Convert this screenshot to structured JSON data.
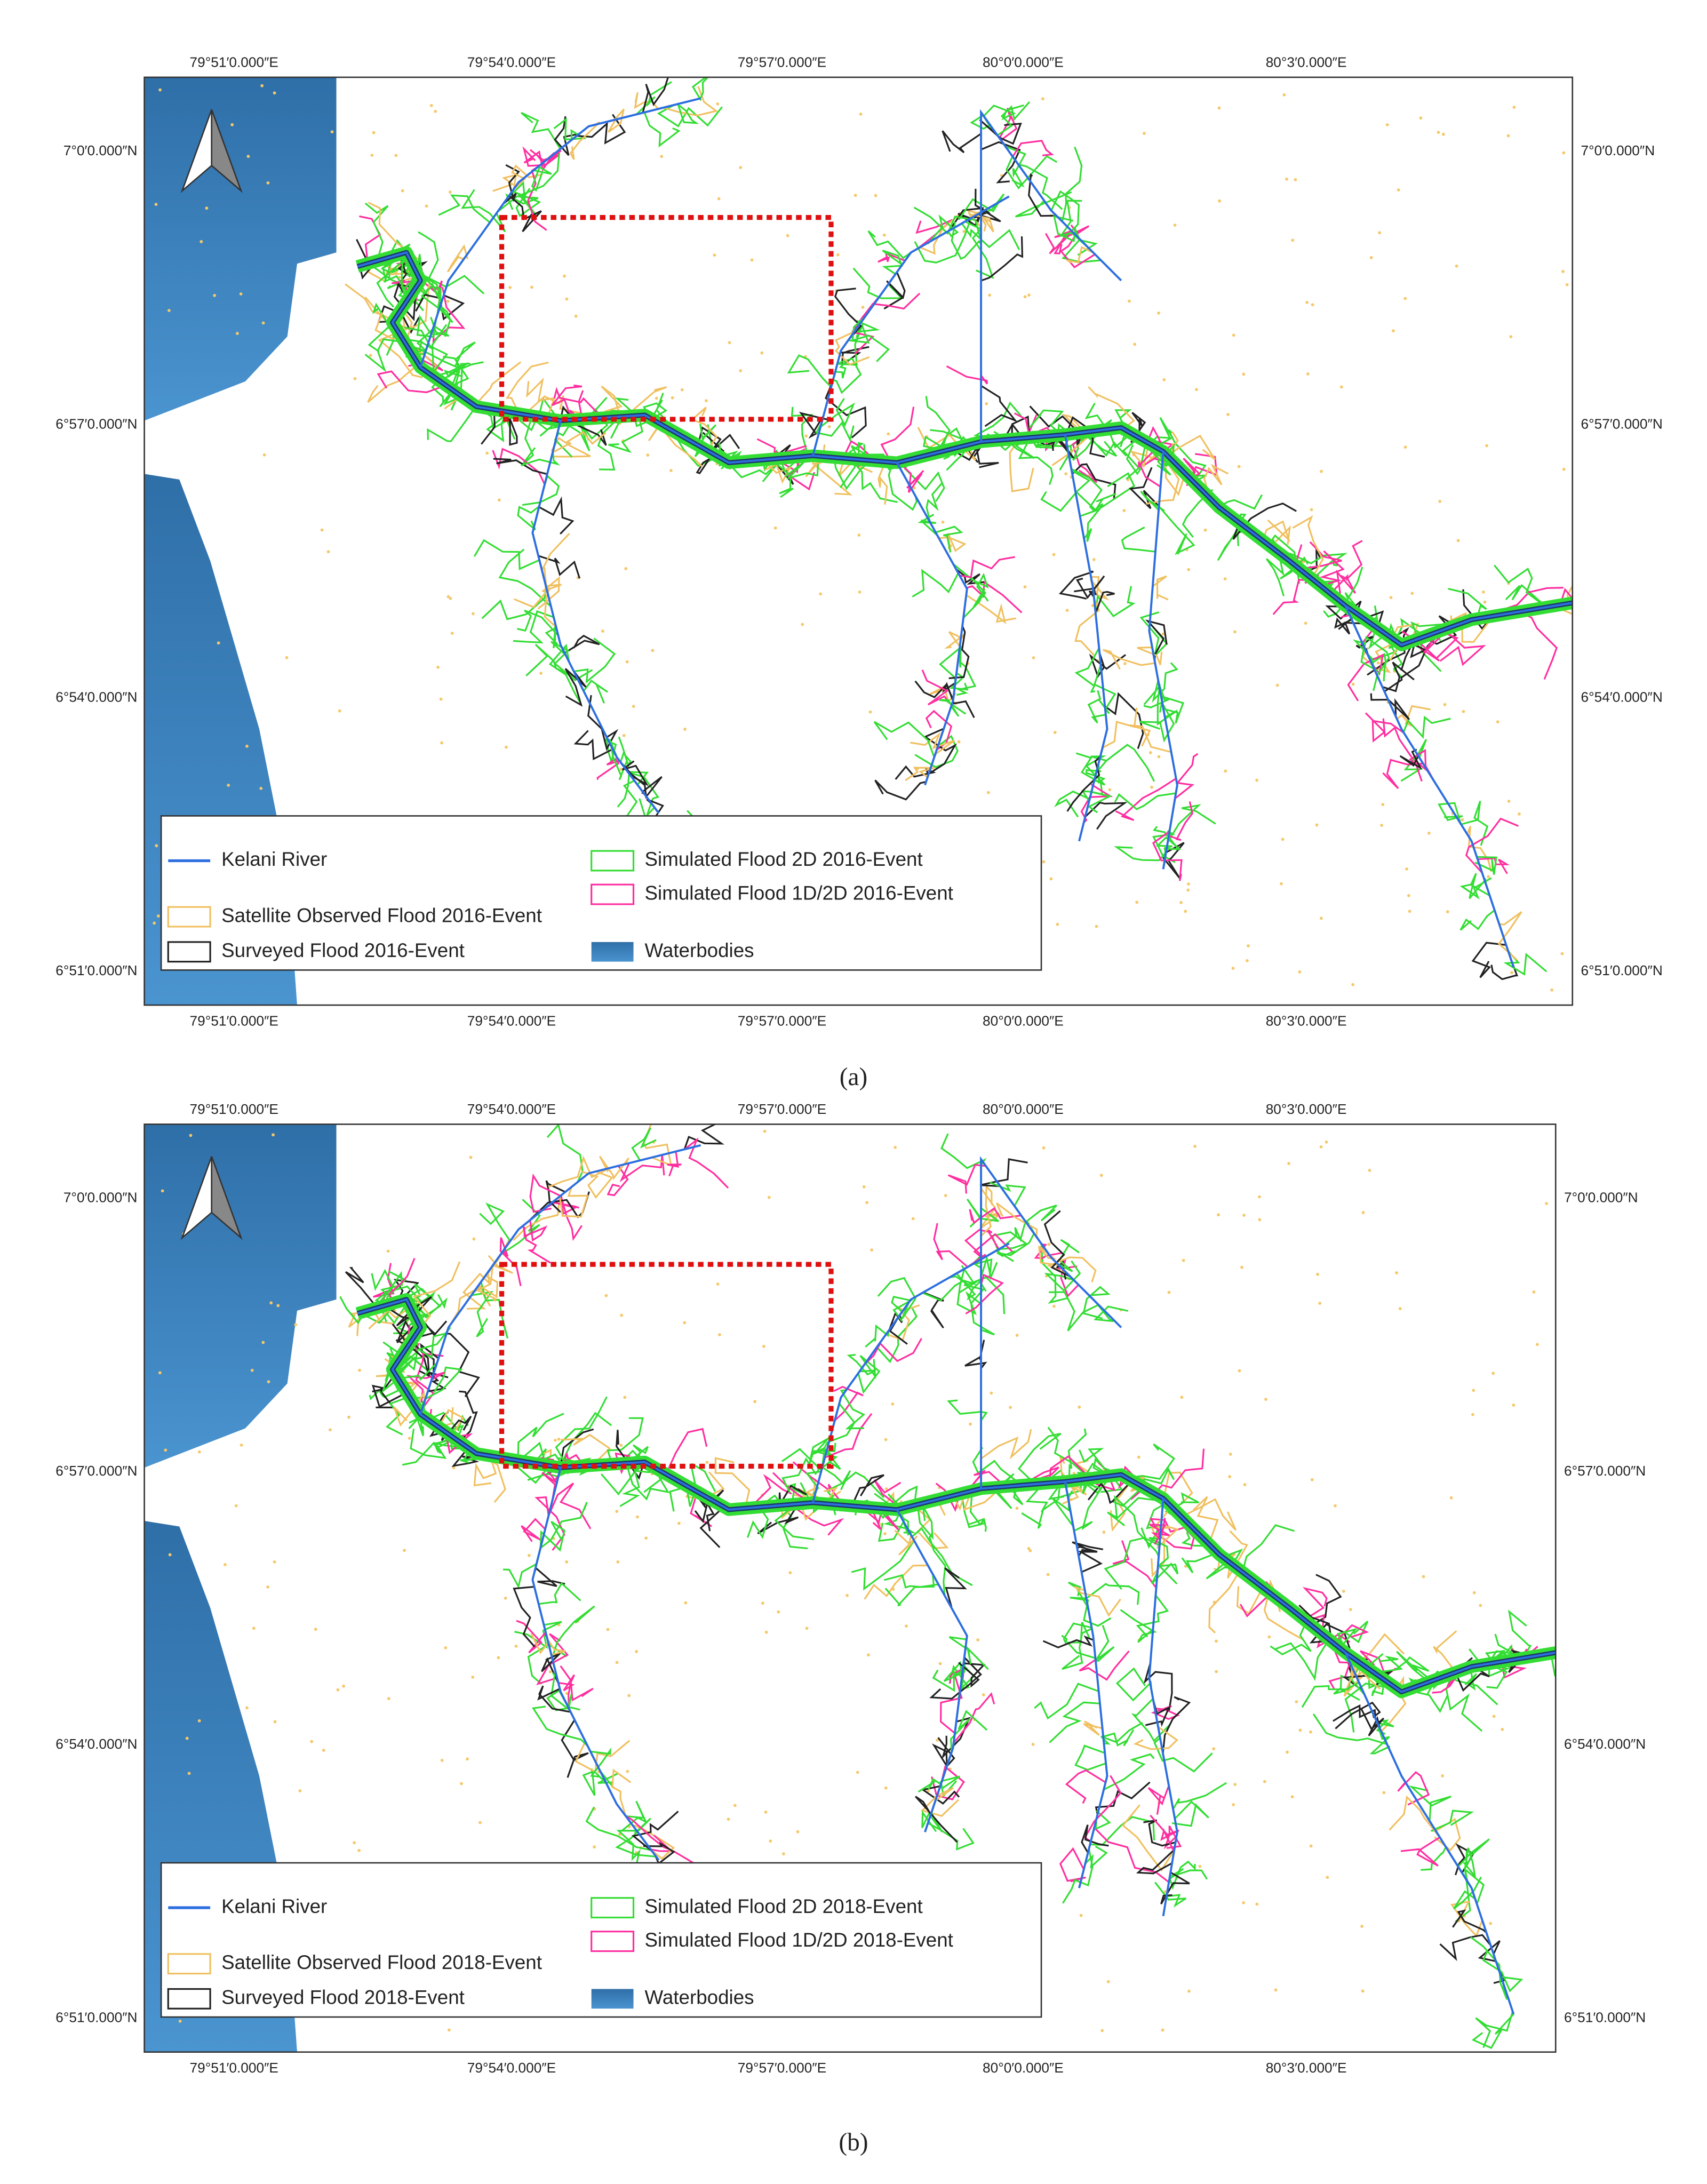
{
  "panels": [
    {
      "label": "(a)",
      "top_axis_labels": [
        "79°51′0.000″E",
        "79°54′0.000″E",
        "79°57′0.000″E",
        "80°0′0.000″E",
        "80°3′0.000″E"
      ],
      "bottom_axis_labels": [
        "79°51′0.000″E",
        "79°54′0.000″E",
        "79°57′0.000″E",
        "80°0′0.000″E",
        "80°3′0.000″E"
      ],
      "left_axis_labels": [
        "7°0′0.000″N",
        "6°57′0.000″N",
        "6°54′0.000″N",
        "6°51′0.000″N"
      ],
      "right_axis_labels": [
        "7°0′0.000″N",
        "6°57′0.000″N",
        "6°54′0.000″N",
        "6°51′0.000″N"
      ],
      "legend": [
        "Kelani River",
        "Satellite Observed Flood 2016-Event",
        "Surveyed Flood 2016-Event",
        "Simulated Flood 2D 2016-Event",
        "Simulated Flood 1D/2D 2016-Event",
        "Waterbodies"
      ]
    },
    {
      "label": "(b)",
      "top_axis_labels": [
        "79°51′0.000″E",
        "79°54′0.000″E",
        "79°57′0.000″E",
        "80°0′0.000″E",
        "80°3′0.000″E"
      ],
      "bottom_axis_labels": [
        "79°51′0.000″E",
        "79°54′0.000″E",
        "79°57′0.000″E",
        "80°0′0.000″E",
        "80°3′0.000″E"
      ],
      "left_axis_labels": [
        "7°0′0.000″N",
        "6°57′0.000″N",
        "6°54′0.000″N",
        "6°51′0.000″N"
      ],
      "right_axis_labels": [
        "7°0′0.000″N",
        "6°57′0.000″N",
        "6°54′0.000″N",
        "6°51′0.000″N"
      ],
      "legend": [
        "Kelani River",
        "Satellite Observed Flood 2018-Event",
        "Surveyed Flood 2018-Event",
        "Simulated Flood 2D 2018-Event",
        "Simulated Flood 1D/2D 2018-Event",
        "Waterbodies"
      ]
    }
  ]
}
